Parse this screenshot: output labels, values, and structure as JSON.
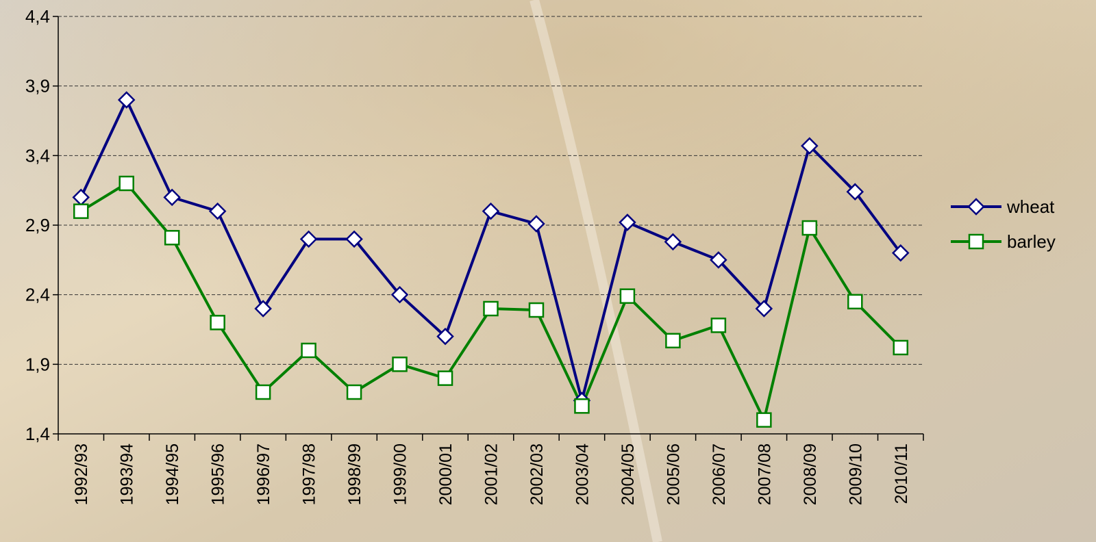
{
  "chart_data": {
    "type": "line",
    "categories": [
      "1992/93",
      "1993/94",
      "1994/95",
      "1995/96",
      "1996/97",
      "1997/98",
      "1998/99",
      "1999/00",
      "2000/01",
      "2001/02",
      "2002/03",
      "2003/04",
      "2004/05",
      "2005/06",
      "2006/07",
      "2007/08",
      "2008/09",
      "2009/10",
      "2010/11"
    ],
    "series": [
      {
        "name": "wheat",
        "color": "#000080",
        "marker": "diamond",
        "values": [
          3.1,
          3.8,
          3.1,
          3.0,
          2.3,
          2.8,
          2.8,
          2.4,
          2.1,
          3.0,
          2.91,
          1.64,
          2.92,
          2.78,
          2.65,
          2.3,
          3.47,
          3.14,
          2.7
        ]
      },
      {
        "name": "barley",
        "color": "#008000",
        "marker": "square",
        "values": [
          3.0,
          3.2,
          2.81,
          2.2,
          1.7,
          2.0,
          1.7,
          1.9,
          1.8,
          2.3,
          2.29,
          1.6,
          2.39,
          2.07,
          2.18,
          1.5,
          2.88,
          2.35,
          2.02
        ]
      }
    ],
    "ylim": [
      1.4,
      4.4
    ],
    "yticks": [
      {
        "value": 1.4,
        "label": "1,4"
      },
      {
        "value": 1.9,
        "label": "1,9"
      },
      {
        "value": 2.4,
        "label": "2,4"
      },
      {
        "value": 2.9,
        "label": "2,9"
      },
      {
        "value": 3.4,
        "label": "3,4"
      },
      {
        "value": 3.9,
        "label": "3,9"
      },
      {
        "value": 4.4,
        "label": "4,4"
      }
    ],
    "grid": true,
    "legend": "right"
  }
}
